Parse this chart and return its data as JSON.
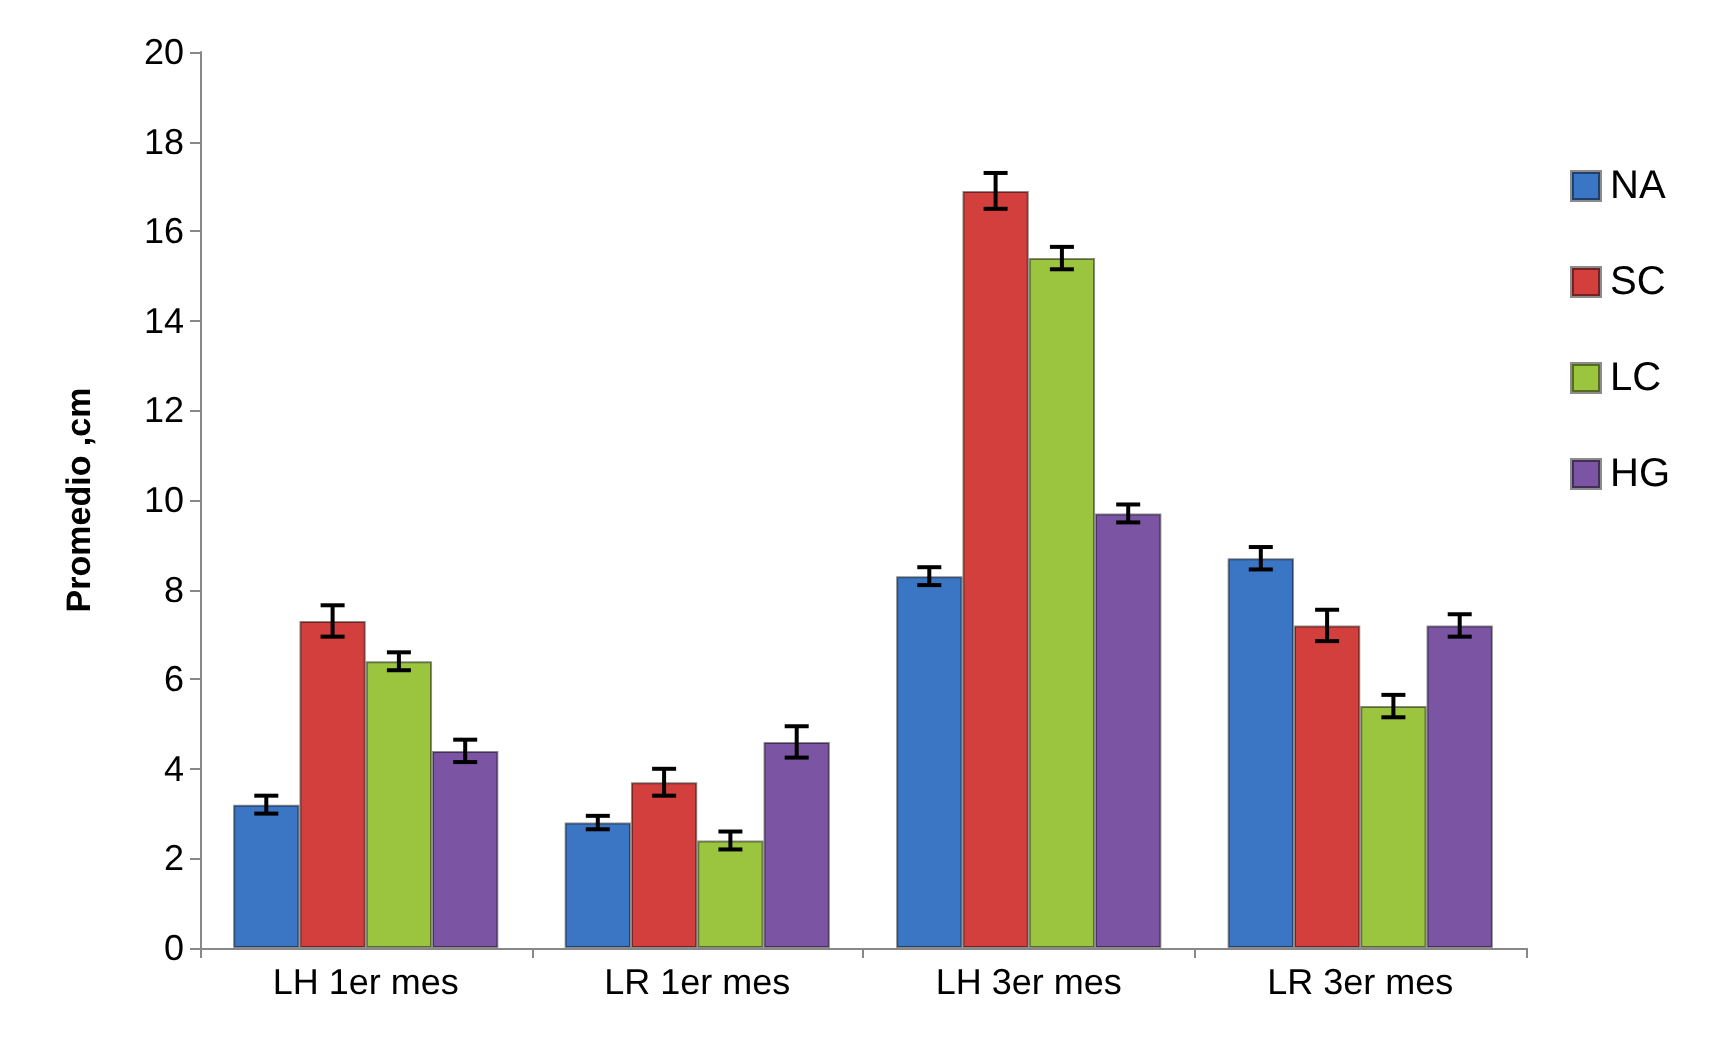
{
  "chart_data": {
    "type": "bar",
    "ylabel": "Promedio ,cm",
    "categories": [
      "LH 1er mes",
      "LR 1er mes",
      "LH 3er mes",
      "LR 3er mes"
    ],
    "series": [
      {
        "name": "NA",
        "color": "#3a76c4",
        "values": [
          3.2,
          2.8,
          8.3,
          8.7
        ],
        "errors": [
          0.2,
          0.15,
          0.2,
          0.25
        ]
      },
      {
        "name": "SC",
        "color": "#d23f3c",
        "values": [
          7.3,
          3.7,
          16.9,
          7.2
        ],
        "errors": [
          0.35,
          0.3,
          0.4,
          0.35
        ]
      },
      {
        "name": "LC",
        "color": "#9bc43f",
        "values": [
          6.4,
          2.4,
          15.4,
          5.4
        ],
        "errors": [
          0.2,
          0.2,
          0.25,
          0.25
        ]
      },
      {
        "name": "HG",
        "color": "#7b55a3",
        "values": [
          4.4,
          4.6,
          9.7,
          7.2
        ],
        "errors": [
          0.25,
          0.35,
          0.2,
          0.25
        ]
      }
    ],
    "ylim": [
      0,
      20
    ],
    "yticks": [
      0,
      2,
      4,
      6,
      8,
      10,
      12,
      14,
      16,
      18,
      20
    ],
    "grid": false,
    "legend": "right"
  }
}
